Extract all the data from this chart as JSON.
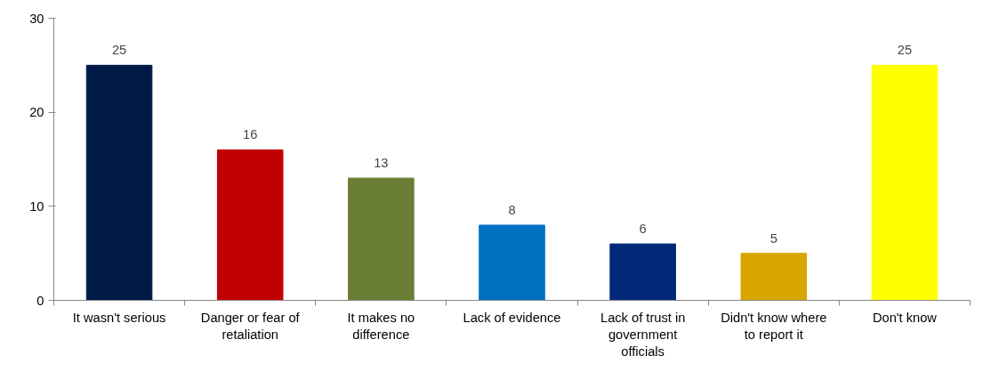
{
  "chart_data": {
    "type": "bar",
    "categories": [
      "It wasn't serious",
      "Danger or fear of retaliation",
      "It makes no difference",
      "Lack of evidence",
      "Lack of trust in government officials",
      "Didn't know where to report it",
      "Don't know"
    ],
    "values": [
      25,
      16,
      13,
      8,
      6,
      5,
      25
    ],
    "colors": [
      "#001a48",
      "#c00000",
      "#6a7d34",
      "#0070c0",
      "#002a78",
      "#d9a600",
      "#ffff00"
    ],
    "ylim": [
      0,
      30
    ],
    "yticks": [
      0,
      10,
      20,
      30
    ],
    "data_labels": true,
    "grid": false
  }
}
